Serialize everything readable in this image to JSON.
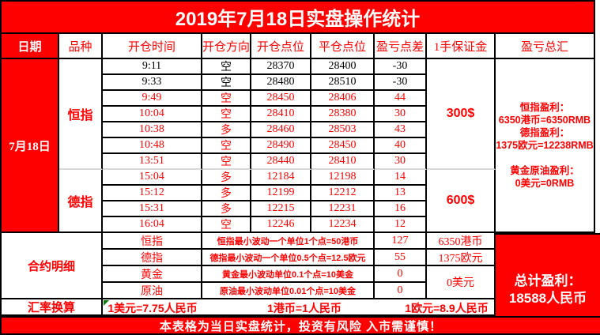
{
  "title": "2019年7月18日实盘操作统计",
  "colors": {
    "accent_red": "#FF0000",
    "loss_text_black": "#000000",
    "white": "#FFFFFF",
    "section_divider_gray": "#D8D8D8",
    "corner_marker_green": "#0B7A0B"
  },
  "header": {
    "date": "日期",
    "variety": "品种",
    "open_time": "开仓时间",
    "direction": "开仓方向",
    "open_point": "开仓点位",
    "close_point": "平仓点位",
    "pl_points": "盈亏点差",
    "margin": "1手保证金",
    "pl_summary": "盈亏总汇"
  },
  "date_label": "7月18日",
  "sections": [
    {
      "variety": "恒指",
      "margin": "300$",
      "trades": [
        {
          "time": "9:11",
          "dir": "空",
          "open": "28370",
          "close": "28400",
          "pl": "-30",
          "color": "black"
        },
        {
          "time": "9:33",
          "dir": "空",
          "open": "28480",
          "close": "28510",
          "pl": "-30",
          "color": "black"
        },
        {
          "time": "9:49",
          "dir": "空",
          "open": "28450",
          "close": "28406",
          "pl": "44",
          "color": "red"
        },
        {
          "time": "10:04",
          "dir": "空",
          "open": "28410",
          "close": "28380",
          "pl": "30",
          "color": "red"
        },
        {
          "time": "10:38",
          "dir": "多",
          "open": "28460",
          "close": "28503",
          "pl": "43",
          "color": "red"
        },
        {
          "time": "10:48",
          "dir": "空",
          "open": "28490",
          "close": "28450",
          "pl": "40",
          "color": "red"
        },
        {
          "time": "13:51",
          "dir": "空",
          "open": "28440",
          "close": "28410",
          "pl": "30",
          "color": "red"
        }
      ]
    },
    {
      "variety": "德指",
      "margin": "600$",
      "trades": [
        {
          "time": "15:04",
          "dir": "多",
          "open": "12184",
          "close": "12198",
          "pl": "14",
          "color": "red"
        },
        {
          "time": "15:12",
          "dir": "多",
          "open": "12199",
          "close": "12212",
          "pl": "13",
          "color": "red"
        },
        {
          "time": "15:31",
          "dir": "多",
          "open": "12215",
          "close": "12231",
          "pl": "16",
          "color": "red"
        },
        {
          "time": "16:04",
          "dir": "空",
          "open": "12246",
          "close": "12234",
          "pl": "12",
          "color": "red"
        }
      ]
    }
  ],
  "pl_summary_lines": [
    "恒指盈利：",
    "6350港币=6350RMB",
    "德指盈利：",
    "1375欧元=12238RMB",
    "",
    "黄金原油盈利：",
    "0美元=0RMB"
  ],
  "contract_section": {
    "label": "合约明细",
    "rows": [
      {
        "name": "恒指",
        "desc": "恒指最小波动一个单位1个点=50港币",
        "points": "127",
        "profit": "6350港币"
      },
      {
        "name": "德指",
        "desc": "德指最小波动一个单位0.5个点=12.5欧元",
        "points": "55",
        "profit": "1375欧元"
      },
      {
        "name": "黄金",
        "desc": "黄金最小波动单位0.1个点=10美金",
        "points": "0",
        "profit": ""
      },
      {
        "name": "原油",
        "desc": "原油最小波动单位0.01个点=10美金",
        "points": "0",
        "profit": ""
      }
    ],
    "merged_profit": "0美元"
  },
  "exchange_section": {
    "label": "汇率换算",
    "rates": [
      "1美元=7.75人民币",
      "1港币=1人民币",
      "1欧元=8.9人民币"
    ]
  },
  "total_profit": {
    "line1": "总计盈利：",
    "line2": "18588人民币"
  },
  "footer": "本表格为当日实盘统计，投资有风险 入市需谨慎！"
}
